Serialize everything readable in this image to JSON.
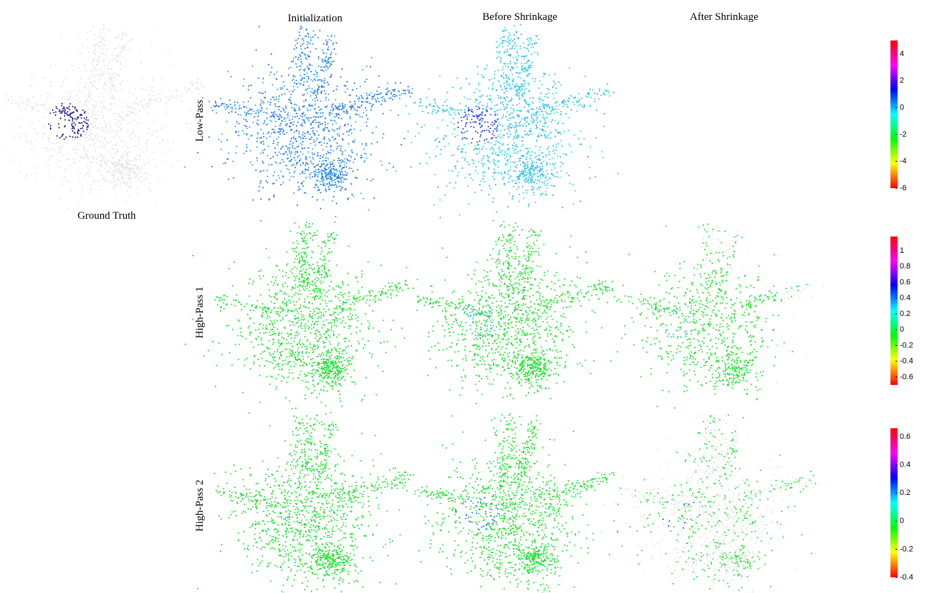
{
  "columns": [
    "Initialization",
    "Before Shrinkage",
    "After Shrinkage"
  ],
  "rows": [
    "Low-Pass",
    "High-Pass 1",
    "High-Pass 2"
  ],
  "ground_truth_label": "Ground Truth",
  "colorbars": [
    {
      "lim": [
        -6,
        5
      ],
      "ticks": [
        4,
        2,
        0,
        -2,
        -4,
        -6
      ]
    },
    {
      "lim": [
        -0.7,
        1.18
      ],
      "ticks": [
        1,
        0.8,
        0.6,
        0.4,
        0.2,
        0,
        -0.2,
        -0.4,
        -0.6
      ]
    },
    {
      "lim": [
        -0.4,
        0.66
      ],
      "ticks": [
        0.6,
        0.4,
        0.2,
        0,
        -0.2,
        -0.4
      ]
    }
  ]
}
